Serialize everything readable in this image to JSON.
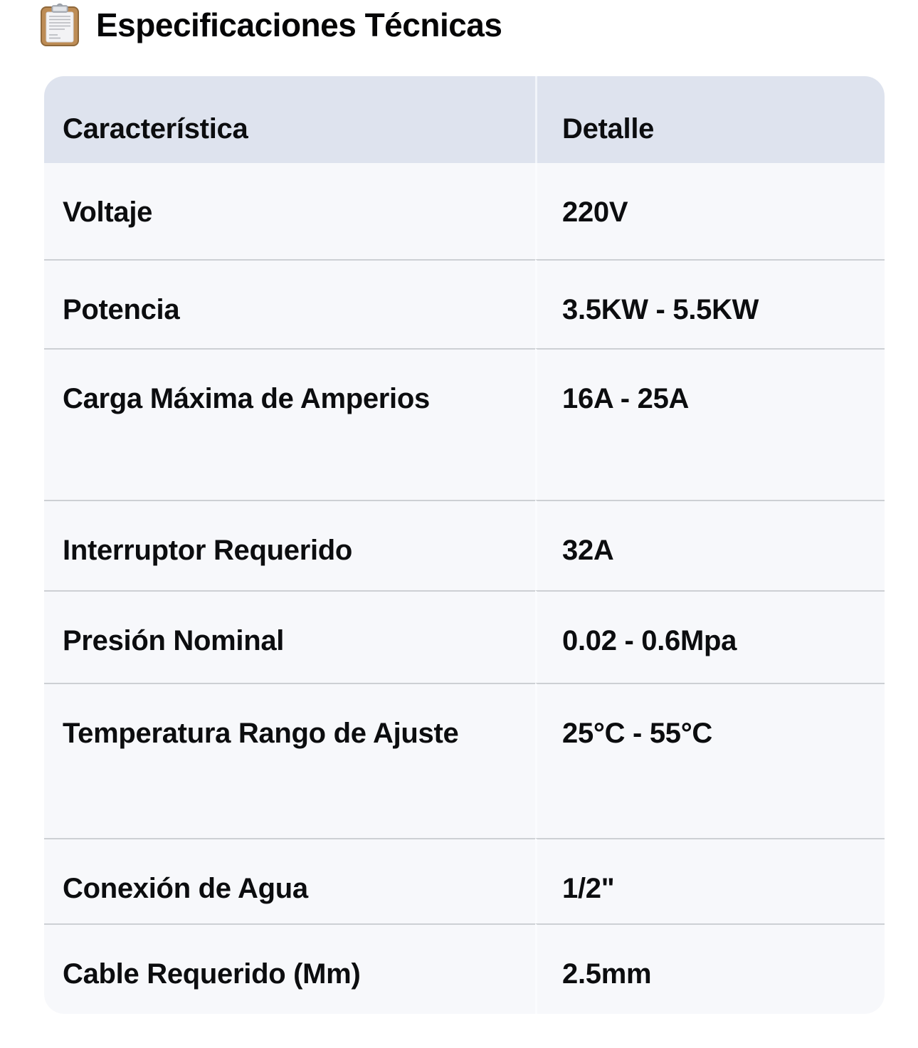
{
  "title": "Especificaciones Técnicas",
  "title_icon": "clipboard-icon",
  "table": {
    "columns": [
      "Característica",
      "Detalle"
    ],
    "rows": [
      {
        "label": "Voltaje",
        "value": "220V"
      },
      {
        "label": "Potencia",
        "value": "3.5KW - 5.5KW"
      },
      {
        "label": "Carga Máxima de Amperios",
        "value": "16A - 25A"
      },
      {
        "label": "Interruptor Requerido",
        "value": "32A"
      },
      {
        "label": "Presión Nominal",
        "value": "0.02 - 0.6Mpa"
      },
      {
        "label": "Temperatura Rango de Ajuste",
        "value": "25°C - 55°C"
      },
      {
        "label": "Conexión de Agua",
        "value": "1/2\""
      },
      {
        "label": "Cable Requerido (Mm)",
        "value": "2.5mm"
      }
    ]
  },
  "colors": {
    "page_bg": "#ffffff",
    "header_bg": "#dee3ee",
    "row_bg": "#f7f8fb",
    "divider": "#cdd0d4",
    "text": "#0c0d0f"
  }
}
